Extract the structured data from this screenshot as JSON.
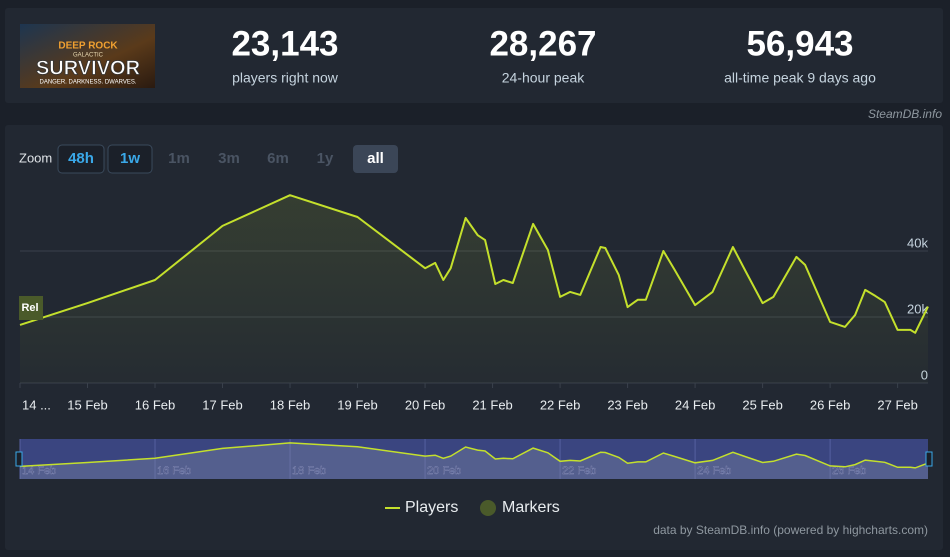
{
  "game": {
    "logo_top": "DEEP ROCK",
    "logo_sub": "GALACTIC",
    "logo_title": "SURVIVOR",
    "logo_tagline": "DANGER. DARKNESS. DWARVES."
  },
  "stats": [
    {
      "value": "23,143",
      "label": "players right now"
    },
    {
      "value": "28,267",
      "label": "24-hour peak"
    },
    {
      "value": "56,943",
      "label": "all-time peak 9 days ago"
    }
  ],
  "source_badge": "SteamDB.info",
  "zoom": {
    "label": "Zoom",
    "options": [
      "48h",
      "1w",
      "1m",
      "3m",
      "6m",
      "1y",
      "all"
    ]
  },
  "chart_data": {
    "type": "line",
    "x": [
      14.0,
      15.0,
      16.0,
      17.0,
      18.0,
      19.0,
      20.0,
      20.15,
      20.27,
      20.38,
      20.6,
      20.78,
      20.89,
      21.04,
      21.16,
      21.3,
      21.6,
      21.82,
      22.0,
      22.15,
      22.3,
      22.6,
      22.67,
      22.87,
      23.0,
      23.15,
      23.27,
      23.53,
      23.7,
      24.0,
      24.26,
      24.56,
      24.74,
      25.0,
      25.16,
      25.5,
      25.63,
      26.0,
      26.22,
      26.37,
      26.52,
      26.67,
      26.81,
      27.0,
      27.19,
      27.26,
      27.45
    ],
    "series": [
      {
        "name": "Players",
        "color": "#c4e02c",
        "values": [
          17600,
          24200,
          31200,
          47600,
          56900,
          50300,
          34800,
          36400,
          31200,
          34800,
          50000,
          44800,
          43300,
          30000,
          31200,
          30300,
          48200,
          40300,
          26100,
          27600,
          26700,
          41200,
          40900,
          32700,
          23000,
          25200,
          25200,
          40000,
          34200,
          23600,
          27600,
          41200,
          34200,
          24200,
          26100,
          38200,
          35800,
          18500,
          17000,
          20600,
          28200,
          26400,
          24500,
          16100,
          16100,
          15200,
          23143
        ]
      }
    ],
    "markers": {
      "name": "Markers",
      "color": "#4a5a2a"
    },
    "rel_label": "Rel",
    "xlim": [
      14,
      27.45
    ],
    "ylim": [
      0,
      60000
    ],
    "xticks": [
      {
        "value": 14,
        "label": "14 ..."
      },
      {
        "value": 15,
        "label": "15 Feb"
      },
      {
        "value": 16,
        "label": "16 Feb"
      },
      {
        "value": 17,
        "label": "17 Feb"
      },
      {
        "value": 18,
        "label": "18 Feb"
      },
      {
        "value": 19,
        "label": "19 Feb"
      },
      {
        "value": 20,
        "label": "20 Feb"
      },
      {
        "value": 21,
        "label": "21 Feb"
      },
      {
        "value": 22,
        "label": "22 Feb"
      },
      {
        "value": 23,
        "label": "23 Feb"
      },
      {
        "value": 24,
        "label": "24 Feb"
      },
      {
        "value": 25,
        "label": "25 Feb"
      },
      {
        "value": 26,
        "label": "26 Feb"
      },
      {
        "value": 27,
        "label": "27 Feb"
      }
    ],
    "yticks": [
      0,
      {
        "value": 20000,
        "label": "20k"
      },
      {
        "value": 40000,
        "label": "40k"
      }
    ],
    "navigator_ticks": [
      {
        "value": 14,
        "label": "14 Feb"
      },
      {
        "value": 16,
        "label": "16 Feb"
      },
      {
        "value": 18,
        "label": "18 Feb"
      },
      {
        "value": 20,
        "label": "20 Feb"
      },
      {
        "value": 22,
        "label": "22 Feb"
      },
      {
        "value": 24,
        "label": "24 Feb"
      },
      {
        "value": 26,
        "label": "26 Feb"
      }
    ],
    "grid": true,
    "credits": "data by SteamDB.info (powered by highcharts.com)"
  }
}
